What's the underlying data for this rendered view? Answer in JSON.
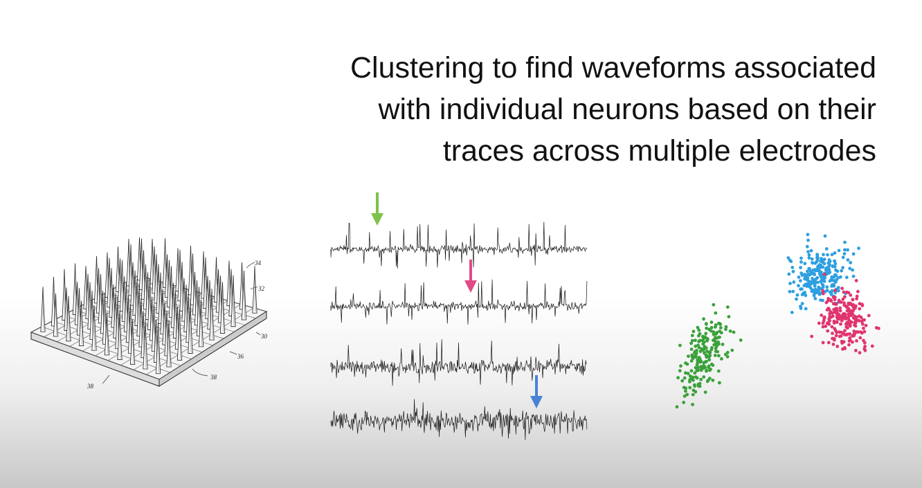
{
  "title": {
    "lines": [
      "Clustering to find waveforms associated",
      "with individual neurons based on their",
      "traces across multiple electrodes"
    ]
  },
  "electrode_array": {
    "labels": [
      "34",
      "32",
      "30",
      "36",
      "38",
      "38"
    ]
  },
  "colors": {
    "green": "#3aa13a",
    "blue": "#2e9fe0",
    "pink": "#e0356f",
    "arrow_green": "#7dc24a",
    "arrow_pink": "#e04a86",
    "arrow_blue": "#4a82d8",
    "trace": "#111111"
  },
  "arrows": [
    {
      "name": "green-arrow",
      "color": "arrow_green",
      "trace": 1
    },
    {
      "name": "pink-arrow",
      "color": "arrow_pink",
      "trace": 2
    },
    {
      "name": "blue-arrow",
      "color": "arrow_blue",
      "trace": 4
    }
  ],
  "traces": {
    "count": 4
  },
  "clusters": [
    {
      "name": "green-cluster",
      "color": "green"
    },
    {
      "name": "blue-cluster",
      "color": "blue"
    },
    {
      "name": "pink-cluster",
      "color": "pink"
    }
  ]
}
